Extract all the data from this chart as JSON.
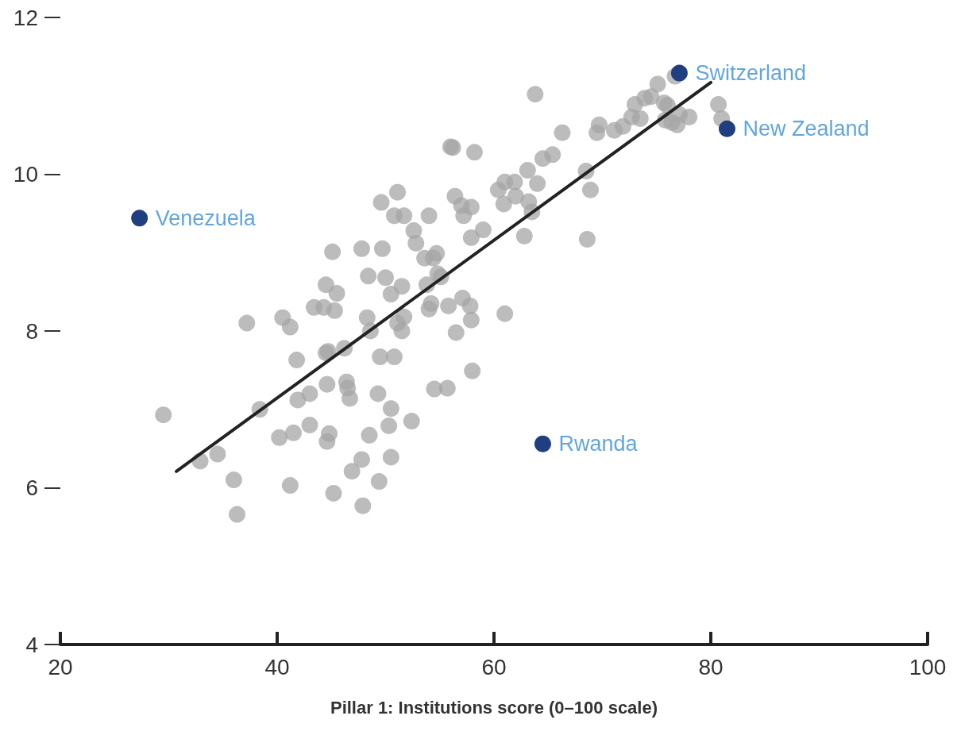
{
  "chart_data": {
    "type": "scatter",
    "xlabel": "Pillar 1: Institutions score (0–100 scale)",
    "xlim": [
      20,
      100
    ],
    "xticks": [
      20,
      40,
      60,
      80,
      100
    ],
    "ylim": [
      4,
      12
    ],
    "yticks": [
      4,
      6,
      8,
      10,
      12
    ],
    "grid": false,
    "marker": "circle",
    "series": [
      {
        "color": "#a6a6a6",
        "x": [
          29.5,
          32.9,
          34.5,
          36.0,
          36.3,
          37.2,
          38.4,
          40.5,
          40.2,
          41.2,
          41.2,
          41.8,
          41.5,
          41.9,
          43.0,
          43.0,
          43.4,
          44.3,
          44.5,
          45.3,
          45.5,
          45.1,
          44.5,
          44.7,
          44.6,
          44.6,
          44.8,
          45.2,
          46.2,
          46.4,
          46.5,
          46.7,
          46.9,
          47.8,
          47.8,
          47.9,
          48.3,
          48.4,
          48.5,
          48.6,
          49.3,
          49.4,
          49.6,
          49.7,
          49.5,
          50.0,
          50.3,
          50.5,
          50.5,
          50.5,
          50.8,
          50.8,
          51.1,
          51.1,
          51.5,
          51.5,
          51.7,
          51.7,
          52.4,
          52.6,
          52.8,
          53.6,
          53.8,
          54.0,
          54.0,
          54.2,
          54.4,
          54.5,
          54.7,
          54.8,
          55.1,
          55.7,
          55.8,
          56.2,
          56.0,
          56.5,
          56.4,
          57.1,
          57.2,
          57.0,
          57.8,
          57.9,
          57.9,
          57.9,
          58.0,
          58.2,
          59.0,
          60.4,
          60.9,
          61.0,
          61.0,
          61.9,
          62.0,
          62.8,
          63.1,
          63.2,
          63.5,
          64.0,
          63.8,
          64.5,
          65.4,
          66.3,
          68.5,
          68.6,
          68.9,
          69.5,
          69.7,
          71.1,
          71.9,
          72.7,
          73.0,
          73.5,
          73.9,
          74.5,
          75.1,
          75.7,
          75.8,
          76.0,
          76.4,
          76.7,
          76.9,
          77.1,
          78.0,
          80.7,
          81.0
        ],
        "values": [
          6.93,
          6.34,
          6.43,
          6.1,
          5.66,
          8.1,
          7.0,
          8.17,
          6.64,
          8.05,
          6.03,
          7.63,
          6.7,
          7.12,
          7.2,
          6.8,
          8.3,
          8.3,
          8.59,
          8.26,
          8.48,
          9.01,
          7.72,
          7.74,
          7.32,
          6.59,
          6.69,
          5.93,
          7.78,
          7.35,
          7.27,
          7.14,
          6.21,
          9.05,
          6.36,
          5.77,
          8.17,
          8.7,
          6.67,
          8.0,
          7.2,
          6.08,
          9.64,
          9.05,
          7.67,
          8.68,
          6.79,
          7.01,
          6.39,
          8.47,
          7.67,
          9.47,
          9.77,
          8.1,
          8.57,
          8.0,
          9.47,
          8.18,
          6.85,
          9.28,
          9.12,
          8.93,
          8.59,
          9.47,
          8.28,
          8.35,
          8.93,
          7.26,
          8.99,
          8.73,
          8.69,
          7.27,
          8.32,
          10.34,
          10.35,
          7.98,
          9.72,
          8.42,
          9.47,
          9.6,
          8.32,
          9.58,
          9.19,
          8.14,
          7.49,
          10.28,
          9.29,
          9.8,
          9.62,
          8.22,
          9.9,
          9.9,
          9.72,
          9.21,
          10.05,
          9.65,
          9.52,
          9.88,
          11.02,
          10.2,
          10.25,
          10.53,
          10.04,
          9.17,
          9.8,
          10.53,
          10.63,
          10.56,
          10.61,
          10.73,
          10.89,
          10.71,
          10.97,
          10.99,
          11.15,
          10.91,
          10.69,
          10.88,
          10.66,
          11.25,
          10.63,
          10.76,
          10.73,
          10.89,
          10.71
        ]
      },
      {
        "color": "#1f3f80",
        "x": [
          27.3,
          77.1,
          81.5,
          64.5
        ],
        "values": [
          9.44,
          11.29,
          10.58,
          6.56
        ]
      },
      {
        "type": "line",
        "marker": "none",
        "color": "#222222",
        "x": [
          30.7,
          80.0
        ],
        "values": [
          6.21,
          11.17
        ]
      }
    ],
    "annotations": [
      {
        "text": "Venezuela",
        "x": 27.3,
        "y": 9.44
      },
      {
        "text": "Switzerland",
        "x": 77.1,
        "y": 11.29
      },
      {
        "text": "New Zealand",
        "x": 81.5,
        "y": 10.58
      },
      {
        "text": "Rwanda",
        "x": 64.5,
        "y": 6.56
      }
    ]
  }
}
